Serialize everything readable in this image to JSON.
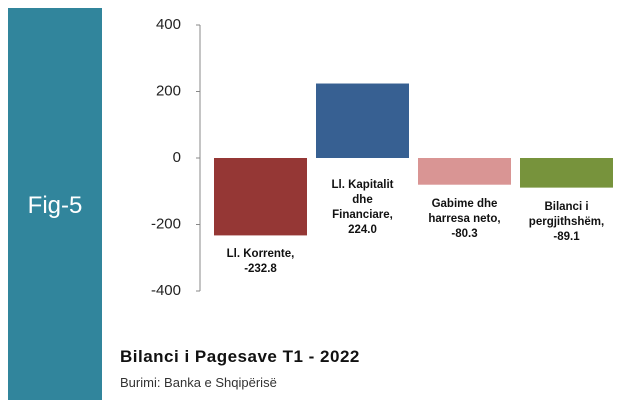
{
  "fig_label": "Fig-5",
  "chart_data": {
    "type": "bar",
    "title": "Bilanci i Pagesave T1 - 2022",
    "source": "Burimi: Banka e Shqipërisë",
    "categories": [
      "Ll. Korrente,",
      "Ll. Kapitalit dhe Financiare,",
      "Gabime dhe harresa neto,",
      "Bilanci i pergjithshëm,"
    ],
    "values": [
      -232.8,
      224.0,
      -80.3,
      -89.1
    ],
    "value_labels": [
      "-232.8",
      "224.0",
      "-80.3",
      "-89.1"
    ],
    "colors": [
      "#953735",
      "#376092",
      "#d99594",
      "#77933c"
    ],
    "ylim": [
      -400,
      400
    ],
    "yticks": [
      -400,
      -200,
      0,
      200,
      400
    ]
  }
}
